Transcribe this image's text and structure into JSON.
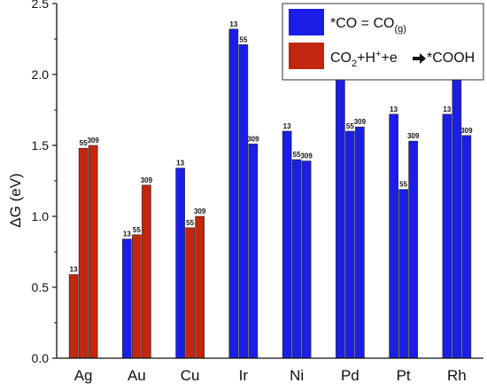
{
  "chart_data": {
    "type": "bar",
    "categories": [
      "Ag",
      "Au",
      "Cu",
      "Ir",
      "Ni",
      "Pd",
      "Pt",
      "Rh"
    ],
    "cluster_sizes": [
      "13",
      "55",
      "309"
    ],
    "ylabel": "ΔG (eV)",
    "ylim": [
      0.0,
      2.5
    ],
    "yticks": [
      "0.0",
      "0.5",
      "1.0",
      "1.5",
      "2.0",
      "2.5"
    ],
    "bars": [
      [
        {
          "size": "13",
          "value": 0.59,
          "series": "cooh"
        },
        {
          "size": "55",
          "value": 1.48,
          "series": "cooh"
        },
        {
          "size": "309",
          "value": 1.5,
          "series": "cooh"
        }
      ],
      [
        {
          "size": "13",
          "value": 0.84,
          "series": "co"
        },
        {
          "size": "55",
          "value": 0.87,
          "series": "cooh"
        },
        {
          "size": "309",
          "value": 1.22,
          "series": "cooh"
        }
      ],
      [
        {
          "size": "13",
          "value": 1.34,
          "series": "co"
        },
        {
          "size": "55",
          "value": 0.92,
          "series": "cooh"
        },
        {
          "size": "309",
          "value": 1.0,
          "series": "cooh"
        }
      ],
      [
        {
          "size": "13",
          "value": 2.32,
          "series": "co"
        },
        {
          "size": "55",
          "value": 2.21,
          "series": "co"
        },
        {
          "size": "309",
          "value": 1.51,
          "series": "co"
        }
      ],
      [
        {
          "size": "13",
          "value": 1.6,
          "series": "co"
        },
        {
          "size": "55",
          "value": 1.4,
          "series": "co"
        },
        {
          "size": "309",
          "value": 1.39,
          "series": "co"
        }
      ],
      [
        {
          "size": "13",
          "value": 1.99,
          "series": "co"
        },
        {
          "size": "55",
          "value": 1.6,
          "series": "co"
        },
        {
          "size": "309",
          "value": 1.63,
          "series": "co"
        }
      ],
      [
        {
          "size": "13",
          "value": 1.72,
          "series": "co"
        },
        {
          "size": "55",
          "value": 1.19,
          "series": "co"
        },
        {
          "size": "309",
          "value": 1.53,
          "series": "co"
        }
      ],
      [
        {
          "size": "13",
          "value": 1.72,
          "series": "co"
        },
        {
          "size": "55",
          "value": 2.0,
          "series": "co"
        },
        {
          "size": "309",
          "value": 1.57,
          "series": "co"
        }
      ]
    ],
    "series": [
      {
        "key": "co",
        "label_parts": {
          "main": "*CO = CO",
          "sub": "(g)"
        },
        "color": "#1a1ee6"
      },
      {
        "key": "cooh",
        "label_parts": {
          "main_a": "CO",
          "sub_a": "2",
          "main_b": "+H",
          "sup_b": "+",
          "main_c": "+e",
          "main_d": "*COOH"
        },
        "color": "#c2260e"
      }
    ],
    "legend_position": "top-right",
    "grid": false
  }
}
